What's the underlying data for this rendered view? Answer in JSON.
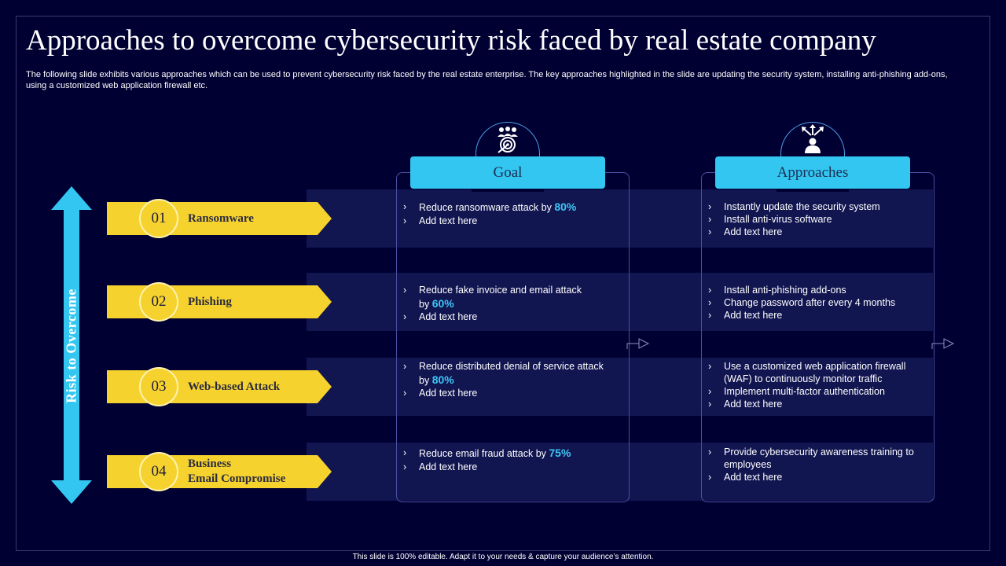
{
  "title": "Approaches to overcome cybersecurity risk faced by real estate company",
  "subtitle": "The following slide exhibits various approaches which can be used to prevent cybersecurity risk faced by the real estate enterprise. The key approaches highlighted in the slide are updating the security system, installing anti-phishing add-ons, using a customized web application firewall etc.",
  "vertical_label": "Risk to Overcome",
  "columns": {
    "goal": {
      "label": "Goal",
      "icon": "target-group-icon"
    },
    "approaches": {
      "label": "Approaches",
      "icon": "person-directions-icon"
    }
  },
  "rows": [
    {
      "num": "01",
      "risk_line1": "Ransomware",
      "risk_line2": "",
      "goal": {
        "pre1": "Reduce ransomware  attack by ",
        "pre2": "",
        "pct": "80%",
        "extra": "Add text here"
      },
      "approaches": [
        "Instantly update the security system",
        "Install anti-virus  software",
        "Add text here"
      ]
    },
    {
      "num": "02",
      "risk_line1": "Phishing",
      "risk_line2": "",
      "goal": {
        "pre1": "Reduce fake invoice and email attack",
        "pre2": "by ",
        "pct": "60%",
        "extra": "Add text here"
      },
      "approaches": [
        "Install anti-phishing add-ons",
        "Change password after every 4 months",
        "Add text here"
      ]
    },
    {
      "num": "03",
      "risk_line1": "Web-based Attack",
      "risk_line2": "",
      "goal": {
        "pre1": "Reduce distributed denial of service attack",
        "pre2": "by ",
        "pct": "80%",
        "extra": "Add text here"
      },
      "approaches": [
        "Use a customized web application firewall (WAF) to continuously monitor traffic",
        "Implement multi-factor authentication",
        "Add text here"
      ]
    },
    {
      "num": "04",
      "risk_line1": "Business",
      "risk_line2": "Email Compromise",
      "goal": {
        "pre1": "Reduce email fraud  attack by ",
        "pre2": "",
        "pct": "75%",
        "extra": "Add text here"
      },
      "approaches": [
        "Provide cybersecurity awareness training to employees",
        "Add text here"
      ]
    }
  ],
  "footer": "This slide is 100% editable.  Adapt it to your needs & capture your audience’s attention.",
  "colors": {
    "background": "#000033",
    "band": "#111550",
    "accent_blue": "#33c6f0",
    "highlight": "#3ec6f6",
    "risk_yellow": "#f6d22e"
  }
}
